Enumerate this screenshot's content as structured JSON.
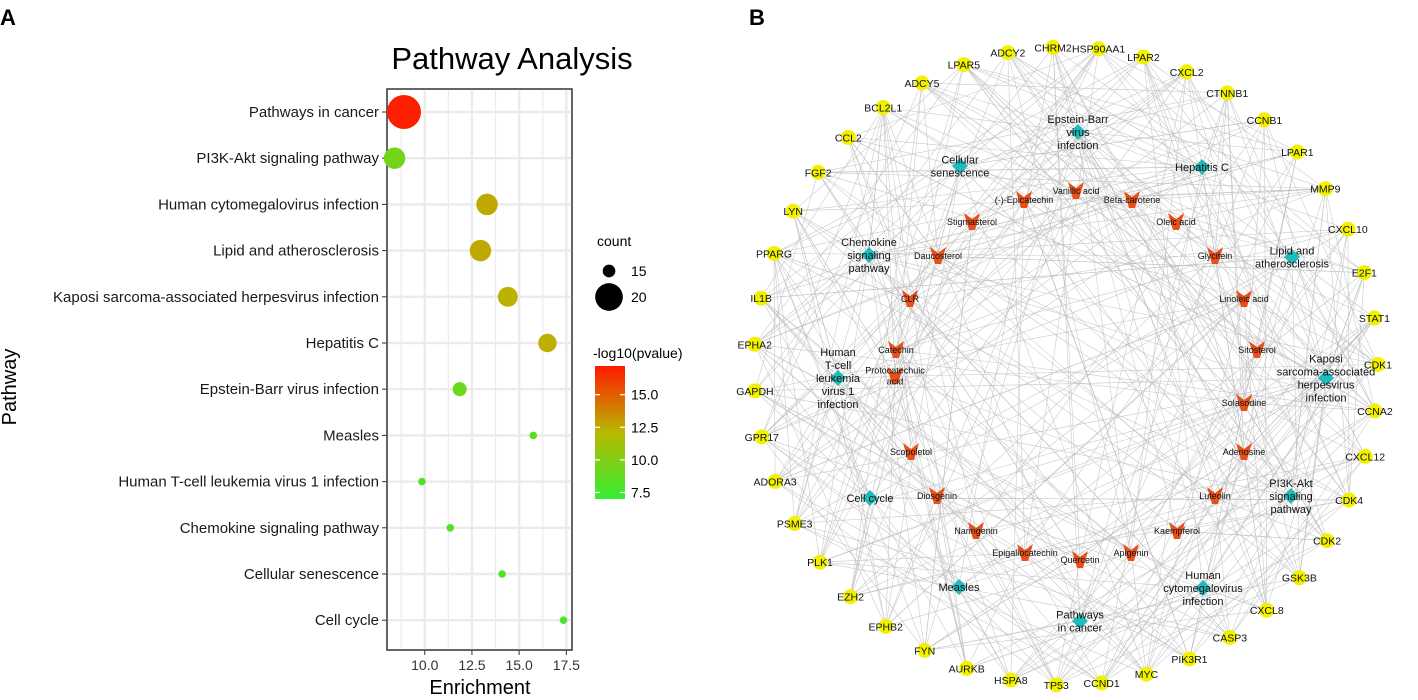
{
  "panels": {
    "left_label": "A",
    "right_label": "B"
  },
  "colors": {
    "bubble_low": "#33ee33",
    "bubble_mid": "#b8b800",
    "bubble_high": "#ff1a00",
    "gene_node": "#f2f200",
    "pathway_node": "#22bbbb",
    "compound_node": "#e8501a",
    "edge": "#bdbdbd",
    "grid": "#ebebeb"
  },
  "chart_data": [
    {
      "type": "scatter",
      "title": "Pathway Analysis",
      "xlabel": "Enrichment",
      "ylabel": "Pathway",
      "xlim": [
        8.0,
        17.8
      ],
      "xticks": [
        10.0,
        12.5,
        15.0,
        17.5
      ],
      "xtick_labels": [
        "10.0",
        "12.5",
        "15.0",
        "17.5"
      ],
      "grid": true,
      "legend_position": "right",
      "categories": [
        "Pathways in cancer",
        "PI3K-Akt signaling pathway",
        "Human cytomegalovirus infection",
        "Lipid and atherosclerosis",
        "Kaposi sarcoma-associated herpesvirus infection",
        "Hepatitis C",
        "Epstein-Barr virus infection",
        "Measles",
        "Human T-cell leukemia virus 1 infection",
        "Chemokine signaling pathway",
        "Cellular senescence",
        "Cell cycle"
      ],
      "series": [
        {
          "name": "Enrichment",
          "values": [
            8.9,
            8.4,
            13.3,
            12.95,
            14.4,
            16.5,
            11.85,
            15.75,
            9.85,
            11.35,
            14.1,
            17.35
          ]
        },
        {
          "name": "count",
          "values": [
            22,
            18,
            18,
            18,
            17.5,
            17,
            15.5,
            13,
            13,
            13,
            13,
            13
          ]
        },
        {
          "name": "-log10(pvalue)",
          "values": [
            17,
            9.5,
            12.6,
            12.6,
            12.3,
            12.4,
            9.2,
            8.5,
            8.2,
            8.0,
            8.3,
            8.0
          ]
        }
      ],
      "size_legend": {
        "title": "count",
        "entries": [
          15,
          20
        ]
      },
      "color_legend": {
        "title": "-log10(pvalue)",
        "min": 7.0,
        "max": 17.2,
        "ticks": [
          7.5,
          10.0,
          12.5,
          15.0
        ],
        "tick_labels": [
          "7.5",
          "10.0",
          "12.5",
          "15.0"
        ]
      }
    },
    {
      "type": "network",
      "gene_nodes": [
        "HSP90AA1",
        "LPAR2",
        "CXCL2",
        "CTNNB1",
        "CCNB1",
        "LPAR1",
        "MMP9",
        "CXCL10",
        "E2F1",
        "STAT1",
        "CDK1",
        "CCNA2",
        "CXCL12",
        "CDK4",
        "CDK2",
        "GSK3B",
        "CXCL8",
        "CASP3",
        "PIK3R1",
        "MYC",
        "CCND1",
        "TP53",
        "HSPA8",
        "AURKB",
        "FYN",
        "EPHB2",
        "EZH2",
        "PLK1",
        "PSME3",
        "ADORA3",
        "GPR17",
        "GAPDH",
        "EPHA2",
        "IL1B",
        "PPARG",
        "LYN",
        "FGF2",
        "CCL2",
        "BCL2L1",
        "ADCY5",
        "LPAR5",
        "ADCY2",
        "CHRM2"
      ],
      "pathway_nodes": [
        {
          "name": "Epstein-Barr virus infection",
          "lines": [
            "Epstein-Barr",
            "virus",
            "infection"
          ]
        },
        {
          "name": "Hepatitis C",
          "lines": [
            "Hepatitis C"
          ]
        },
        {
          "name": "Cellular senescence",
          "lines": [
            "Cellular",
            "senescence"
          ]
        },
        {
          "name": "Lipid and atherosclerosis",
          "lines": [
            "Lipid and",
            "atherosclerosis"
          ]
        },
        {
          "name": "Chemokine signaling pathway",
          "lines": [
            "Chemokine",
            "signaling",
            "pathway"
          ]
        },
        {
          "name": "Kaposi sarcoma-associated herpesvirus infection",
          "lines": [
            "Kaposi",
            "sarcoma-associated",
            "herpesvirus",
            "infection"
          ]
        },
        {
          "name": "Human T-cell leukemia virus 1 infection",
          "lines": [
            "Human",
            "T-cell",
            "leukemia",
            "virus 1",
            "infection"
          ]
        },
        {
          "name": "PI3K-Akt signaling pathway",
          "lines": [
            "PI3K-Akt",
            "signaling",
            "pathway"
          ]
        },
        {
          "name": "Cell cycle",
          "lines": [
            "Cell cycle"
          ]
        },
        {
          "name": "Human cytomegalovirus infection",
          "lines": [
            "Human",
            "cytomegalovirus",
            "infection"
          ]
        },
        {
          "name": "Measles",
          "lines": [
            "Measles"
          ]
        },
        {
          "name": "Pathways in cancer",
          "lines": [
            "Pathways",
            "in cancer"
          ]
        }
      ],
      "compound_nodes": [
        {
          "name": "Vanillic acid",
          "lines": [
            "Vanillic acid"
          ]
        },
        {
          "name": "(-)-Epicatechin",
          "lines": [
            "(-)-Epicatechin"
          ]
        },
        {
          "name": "Beta-carotene",
          "lines": [
            "Beta-carotene"
          ]
        },
        {
          "name": "Stigmasterol",
          "lines": [
            "Stigmasterol"
          ]
        },
        {
          "name": "Oleic acid",
          "lines": [
            "Oleic acid"
          ]
        },
        {
          "name": "Daucosterol",
          "lines": [
            "Daucosterol"
          ]
        },
        {
          "name": "Glycitein",
          "lines": [
            "Glycitein"
          ]
        },
        {
          "name": "CLR",
          "lines": [
            "CLR"
          ]
        },
        {
          "name": "Linoleic acid",
          "lines": [
            "Linoleic acid"
          ]
        },
        {
          "name": "Catechin",
          "lines": [
            "Catechin"
          ]
        },
        {
          "name": "Sitosterol",
          "lines": [
            "Sitosterol"
          ]
        },
        {
          "name": "Protocatechuic acid",
          "lines": [
            "Protocatechuic",
            "acid"
          ]
        },
        {
          "name": "Solasodine",
          "lines": [
            "Solasodine"
          ]
        },
        {
          "name": "Scopoletol",
          "lines": [
            "Scopoletol"
          ]
        },
        {
          "name": "Adenosine",
          "lines": [
            "Adenosine"
          ]
        },
        {
          "name": "Diosgenin",
          "lines": [
            "Diosgenin"
          ]
        },
        {
          "name": "Luteolin",
          "lines": [
            "Luteolin"
          ]
        },
        {
          "name": "Naringenin",
          "lines": [
            "Naringenin"
          ]
        },
        {
          "name": "Kaempferol",
          "lines": [
            "Kaempferol"
          ]
        },
        {
          "name": "Epigallocatechin",
          "lines": [
            "Epigallocatechin"
          ]
        },
        {
          "name": "Quercetin",
          "lines": [
            "Quercetin"
          ]
        },
        {
          "name": "Apigenin",
          "lines": [
            "Apigenin"
          ]
        }
      ]
    }
  ]
}
